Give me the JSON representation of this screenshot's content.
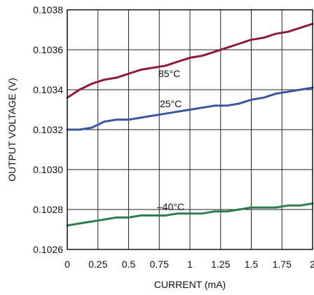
{
  "chart_data": {
    "type": "line",
    "title": "",
    "xlabel": "CURRENT (mA)",
    "ylabel": "OUTPUT VOLTAGE (V)",
    "xlim": [
      0,
      2
    ],
    "ylim": [
      0.1026,
      0.1038
    ],
    "x_ticks": [
      "0",
      "0.25",
      "0.5",
      "0.75",
      "1",
      "1.25",
      "1.5",
      "1.75",
      "2"
    ],
    "y_ticks": [
      "0.1026",
      "0.1028",
      "0.1030",
      "0.1032",
      "0.1034",
      "0.1036",
      "0.1038"
    ],
    "grid": true,
    "series": [
      {
        "name": "85°C",
        "color": "#8c1a3a",
        "x": [
          0,
          0.1,
          0.2,
          0.3,
          0.4,
          0.5,
          0.6,
          0.7,
          0.8,
          0.9,
          1.0,
          1.1,
          1.2,
          1.3,
          1.4,
          1.5,
          1.6,
          1.7,
          1.8,
          1.9,
          2.0
        ],
        "y": [
          0.10336,
          0.1034,
          0.10343,
          0.10345,
          0.10346,
          0.10348,
          0.1035,
          0.10351,
          0.10352,
          0.10354,
          0.10356,
          0.10357,
          0.10359,
          0.10361,
          0.10363,
          0.10365,
          0.10366,
          0.10368,
          0.10369,
          0.10371,
          0.10373
        ]
      },
      {
        "name": "25°C",
        "color": "#3b56a0",
        "x": [
          0,
          0.1,
          0.2,
          0.3,
          0.4,
          0.5,
          0.6,
          0.7,
          0.8,
          0.9,
          1.0,
          1.1,
          1.2,
          1.3,
          1.4,
          1.5,
          1.6,
          1.7,
          1.8,
          1.9,
          2.0
        ],
        "y": [
          0.1032,
          0.1032,
          0.10321,
          0.10324,
          0.10325,
          0.10325,
          0.10326,
          0.10327,
          0.10328,
          0.10329,
          0.1033,
          0.10331,
          0.10332,
          0.10332,
          0.10333,
          0.10335,
          0.10336,
          0.10338,
          0.10339,
          0.1034,
          0.10341
        ]
      },
      {
        "name": "–40°C",
        "color": "#2e7d4a",
        "x": [
          0,
          0.1,
          0.2,
          0.3,
          0.4,
          0.5,
          0.6,
          0.7,
          0.8,
          0.9,
          1.0,
          1.1,
          1.2,
          1.3,
          1.4,
          1.5,
          1.6,
          1.7,
          1.8,
          1.9,
          2.0
        ],
        "y": [
          0.10272,
          0.10273,
          0.10274,
          0.10275,
          0.10276,
          0.10276,
          0.10277,
          0.10277,
          0.10277,
          0.10278,
          0.10278,
          0.10278,
          0.10279,
          0.10279,
          0.1028,
          0.10281,
          0.10281,
          0.10281,
          0.10282,
          0.10282,
          0.10283
        ]
      }
    ]
  }
}
